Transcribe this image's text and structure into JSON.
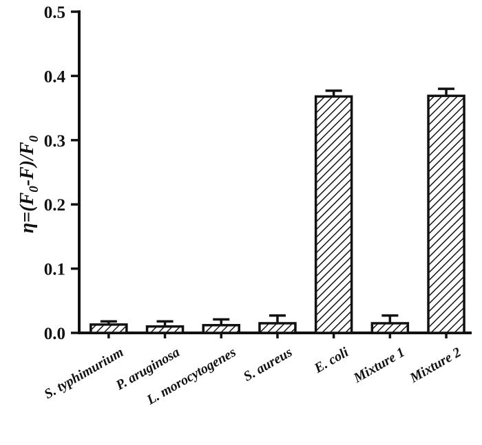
{
  "chart_data": {
    "type": "bar",
    "title": "",
    "xlabel": "",
    "ylabel": "η=(F0-F)/F0",
    "ylabel_parts": {
      "eta": "η",
      "eq_open": "=(F",
      "sub1": "0",
      "dash": "-F)/F",
      "sub2": "0"
    },
    "ylim": [
      0,
      0.5
    ],
    "yticks": [
      "0.0",
      "0.1",
      "0.2",
      "0.3",
      "0.4",
      "0.5"
    ],
    "categories": [
      "S. typhimurium",
      "P. aruginosa",
      "L. morocytogenes",
      "S. aureus",
      "E. coli",
      "Mixture 1",
      "Mixture 2"
    ],
    "values": [
      0.013,
      0.01,
      0.012,
      0.015,
      0.368,
      0.015,
      0.369
    ],
    "errors": [
      0.005,
      0.008,
      0.009,
      0.012,
      0.009,
      0.012,
      0.011
    ],
    "bar_pattern": "diagonal-hatch",
    "grid": false,
    "legend": "none",
    "colors": {
      "ink": "#111111",
      "bar_fill": "#ffffff"
    }
  }
}
